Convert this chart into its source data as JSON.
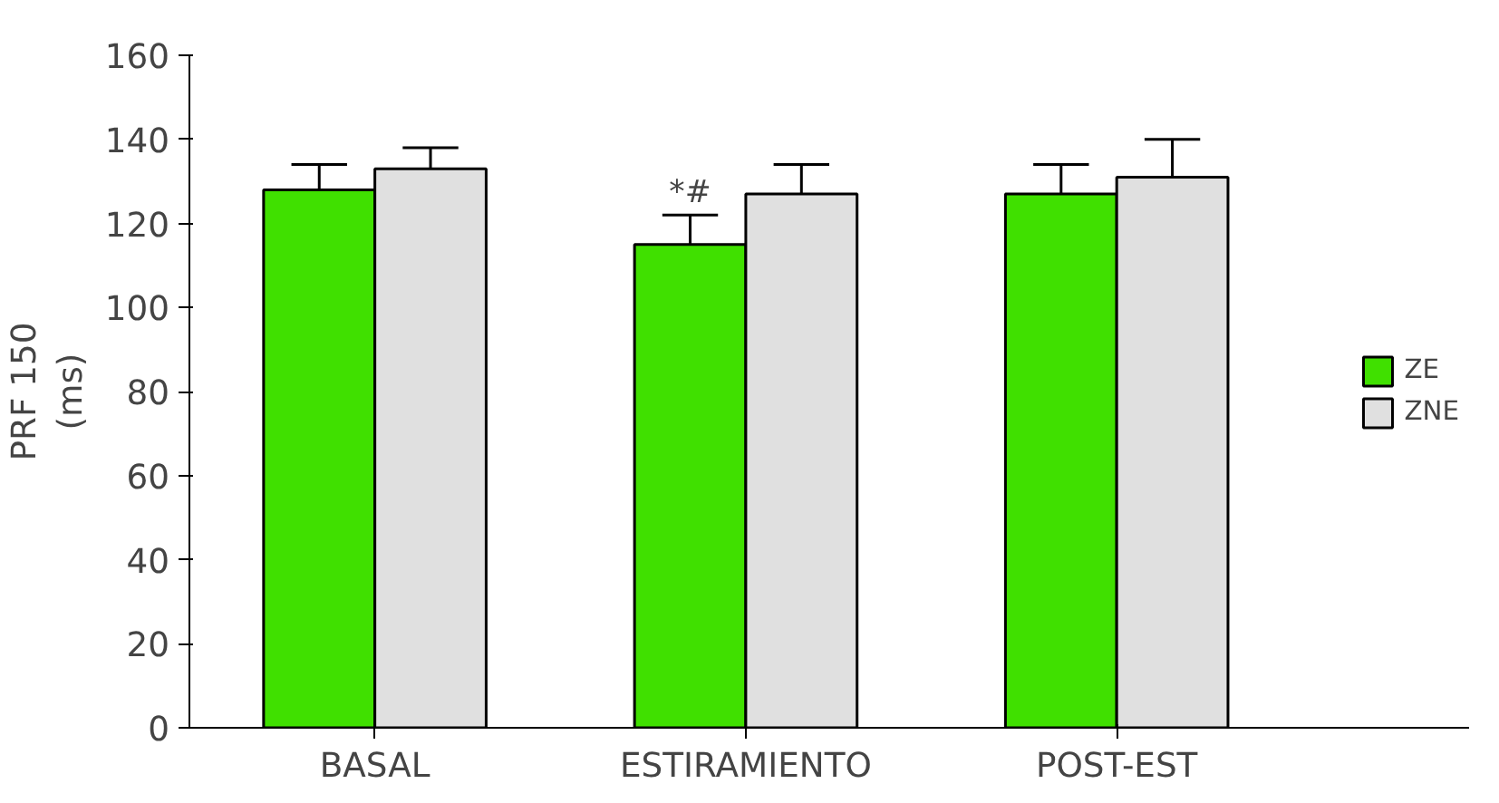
{
  "chart_data": {
    "type": "bar",
    "ylabel": "PRF 150\n(ms)",
    "categories": [
      "BASAL",
      "ESTIRAMIENTO",
      "POST-EST"
    ],
    "series": [
      {
        "name": "ZE",
        "color": "#40e000",
        "values": [
          128,
          115,
          127
        ],
        "errors": [
          [
            128,
            134
          ],
          [
            115,
            122
          ],
          [
            127,
            134
          ]
        ]
      },
      {
        "name": "ZNE",
        "color": "#e0e0e0",
        "values": [
          133,
          127,
          131
        ],
        "errors": [
          [
            133,
            138
          ],
          [
            127,
            134
          ],
          [
            131,
            140
          ]
        ]
      }
    ],
    "annotations": [
      {
        "text": "*#",
        "x": "ESTIRAMIENTO",
        "y": 122
      }
    ],
    "ylim": [
      0,
      160
    ],
    "yticks": [
      0,
      20,
      40,
      60,
      80,
      100,
      120,
      140,
      160
    ],
    "grid": false,
    "legend": "right"
  }
}
